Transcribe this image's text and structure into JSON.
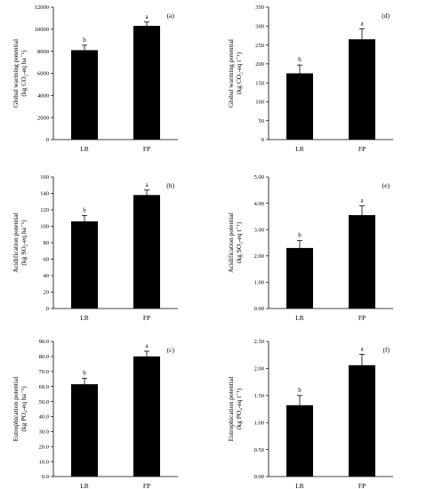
{
  "chart_data": [
    {
      "type": "bar",
      "panel_label": "(a)",
      "categories": [
        "LR",
        "FP"
      ],
      "values": [
        8100,
        10300
      ],
      "errors": [
        450,
        350
      ],
      "significance": [
        "b",
        "a"
      ],
      "ylabel_line1": "Global warming potential",
      "ylabel_line2": "(kg CO₂-eq ha⁻¹)",
      "ylim": [
        0,
        12000
      ],
      "yticks": [
        "0",
        "2000",
        "4000",
        "6000",
        "8000",
        "10000",
        "12000"
      ]
    },
    {
      "type": "bar",
      "panel_label": "(d)",
      "categories": [
        "LR",
        "FP"
      ],
      "values": [
        175,
        265
      ],
      "errors": [
        22,
        28
      ],
      "significance": [
        "b",
        "a"
      ],
      "ylabel_line1": "Global warming potential",
      "ylabel_line2": "(kg CO₂-eq t⁻¹)",
      "ylim": [
        0,
        350
      ],
      "yticks": [
        "0",
        "50",
        "100",
        "150",
        "200",
        "250",
        "300",
        "350"
      ]
    },
    {
      "type": "bar",
      "panel_label": "(b)",
      "categories": [
        "LR",
        "FP"
      ],
      "values": [
        106,
        138
      ],
      "errors": [
        7,
        6
      ],
      "significance": [
        "b",
        "a"
      ],
      "ylabel_line1": "Acidification potential",
      "ylabel_line2": "(kg SO₂-eq ha⁻¹)",
      "ylim": [
        0,
        160
      ],
      "yticks": [
        "0",
        "20",
        "40",
        "60",
        "80",
        "100",
        "120",
        "140",
        "160"
      ]
    },
    {
      "type": "bar",
      "panel_label": "(e)",
      "categories": [
        "LR",
        "FP"
      ],
      "values": [
        2.3,
        3.55
      ],
      "errors": [
        0.28,
        0.35
      ],
      "significance": [
        "b",
        "a"
      ],
      "ylabel_line1": "Acidification potential",
      "ylabel_line2": "(kg SO₂-eq t⁻¹)",
      "ylim": [
        0,
        5
      ],
      "yticks": [
        "0.00",
        "1.00",
        "2.00",
        "3.00",
        "4.00",
        "5.00"
      ]
    },
    {
      "type": "bar",
      "panel_label": "(c)",
      "categories": [
        "LR",
        "FP"
      ],
      "values": [
        61.5,
        80.0
      ],
      "errors": [
        4.0,
        3.5
      ],
      "significance": [
        "b",
        "a"
      ],
      "ylabel_line1": "Eutrophication potential",
      "ylabel_line2": "(kg PO₄-eq ha⁻¹)",
      "ylim": [
        0,
        90
      ],
      "yticks": [
        "0.0",
        "10.0",
        "20.0",
        "30.0",
        "40.0",
        "50.0",
        "60.0",
        "70.0",
        "80.0",
        "90.0"
      ]
    },
    {
      "type": "bar",
      "panel_label": "(f)",
      "categories": [
        "LR",
        "FP"
      ],
      "values": [
        1.32,
        2.06
      ],
      "errors": [
        0.18,
        0.2
      ],
      "significance": [
        "b",
        "a"
      ],
      "ylabel_line1": "Eutrophication potential",
      "ylabel_line2": "(kg PO₄-eq t⁻¹)",
      "ylim": [
        0,
        2.5
      ],
      "yticks": [
        "0.00",
        "0.50",
        "1.00",
        "1.50",
        "2.00",
        "2.50"
      ]
    }
  ]
}
